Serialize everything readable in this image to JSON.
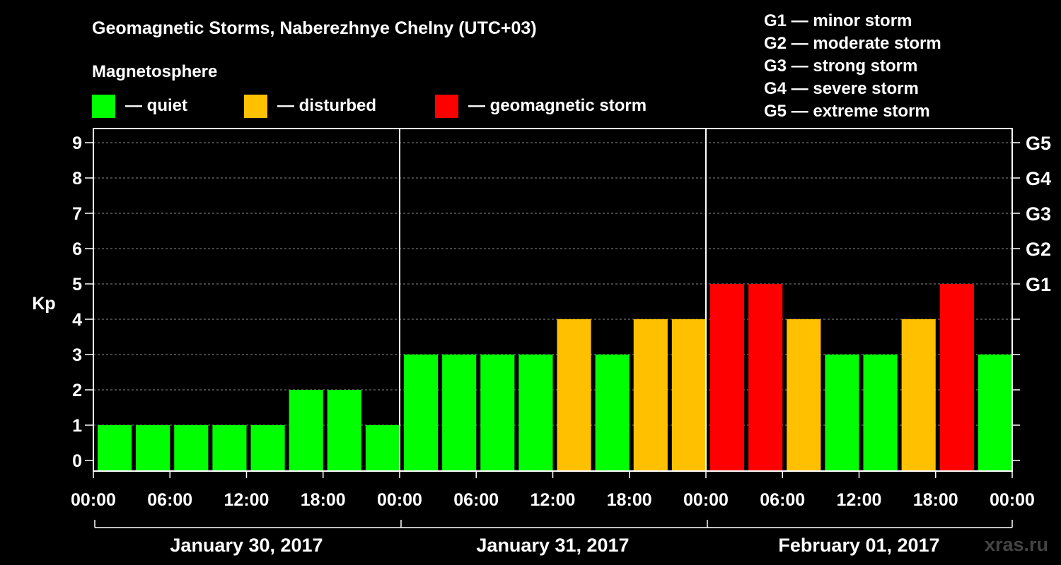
{
  "chart_data": {
    "type": "bar",
    "title": "Geomagnetic Storms, Naberezhnye Chelny (UTC+03)",
    "subtitle": "Magnetosphere",
    "ylabel": "Kp",
    "ylim": [
      0,
      9
    ],
    "yticks": [
      "0",
      "1",
      "2",
      "3",
      "4",
      "5",
      "6",
      "7",
      "8",
      "9"
    ],
    "right_ticks": [
      {
        "kp": 5,
        "label": "G1"
      },
      {
        "kp": 6,
        "label": "G2"
      },
      {
        "kp": 7,
        "label": "G3"
      },
      {
        "kp": 8,
        "label": "G4"
      },
      {
        "kp": 9,
        "label": "G5"
      }
    ],
    "xticks": [
      "00:00",
      "06:00",
      "12:00",
      "18:00",
      "00:00",
      "06:00",
      "12:00",
      "18:00",
      "00:00",
      "06:00",
      "12:00",
      "18:00",
      "00:00"
    ],
    "days": [
      "January 30, 2017",
      "January 31, 2017",
      "February 01, 2017"
    ],
    "interval_hours": 3,
    "values": [
      1,
      1,
      1,
      1,
      1,
      2,
      2,
      1,
      3,
      3,
      3,
      3,
      4,
      3,
      4,
      4,
      5,
      5,
      4,
      3,
      3,
      4,
      5,
      3
    ],
    "status_legend": [
      {
        "label": "— quiet",
        "color": "#00ff00"
      },
      {
        "label": "— disturbed",
        "color": "#ffc000"
      },
      {
        "label": "— geomagnetic storm",
        "color": "#ff0000"
      }
    ],
    "storm_scale": [
      "G1 — minor storm",
      "G2 — moderate storm",
      "G3 — strong storm",
      "G4 — severe storm",
      "G5 — extreme storm"
    ]
  },
  "watermark": "xras.ru"
}
